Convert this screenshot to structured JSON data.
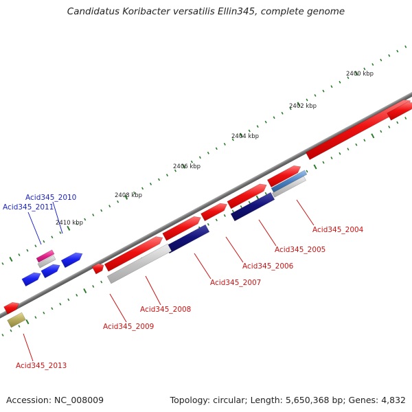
{
  "title": "Candidatus Koribacter versatilis Ellin345, complete genome",
  "footer": {
    "accession": "Accession: NC_008009",
    "info": "Topology: circular; Length: 5,650,368 bp; Genes: 4,832"
  },
  "scale_labels": [
    "2400 kbp",
    "2402 kbp",
    "2404 kbp",
    "2406 kbp",
    "2408 kbp",
    "2410 kbp"
  ],
  "colors": {
    "red": "#ee1111",
    "navy": "#12127a",
    "blue": "#1a22ee",
    "gray": "#bdbdbd",
    "steel": "#4a7fbf",
    "magenta": "#e0218a",
    "olive": "#b5a95a",
    "backbone": "#7a7a7a",
    "tick": "#2a7a2a",
    "red_label": "#cc1111",
    "blue_label": "#1a22cc"
  },
  "gene_labels": {
    "g2004": "Acid345_2004",
    "g2005": "Acid345_2005",
    "g2006": "Acid345_2006",
    "g2007": "Acid345_2007",
    "g2008": "Acid345_2008",
    "g2009": "Acid345_2009",
    "g2010": "Acid345_2010",
    "g2011": "Acid345_2011",
    "g2013": "Acid345_2013"
  }
}
